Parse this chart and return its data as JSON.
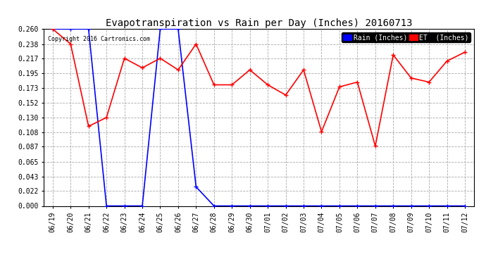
{
  "title": "Evapotranspiration vs Rain per Day (Inches) 20160713",
  "copyright": "Copyright 2016 Cartronics.com",
  "x_labels": [
    "06/19",
    "06/20",
    "06/21",
    "06/22",
    "06/23",
    "06/24",
    "06/25",
    "06/26",
    "06/27",
    "06/28",
    "06/29",
    "06/30",
    "07/01",
    "07/02",
    "07/03",
    "07/04",
    "07/05",
    "07/06",
    "07/07",
    "07/08",
    "07/09",
    "07/10",
    "07/11",
    "07/12"
  ],
  "rain_values": [
    0.26,
    0.26,
    0.26,
    0.0,
    0.0,
    0.0,
    0.26,
    0.26,
    0.028,
    0.0,
    0.0,
    0.0,
    0.0,
    0.0,
    0.0,
    0.0,
    0.0,
    0.0,
    0.0,
    0.0,
    0.0,
    0.0,
    0.0,
    0.0
  ],
  "et_values": [
    0.26,
    0.238,
    0.117,
    0.13,
    0.217,
    0.203,
    0.217,
    0.2,
    0.238,
    0.178,
    0.178,
    0.2,
    0.178,
    0.163,
    0.2,
    0.109,
    0.175,
    0.182,
    0.088,
    0.222,
    0.188,
    0.182,
    0.213,
    0.226
  ],
  "ylim": [
    0.0,
    0.26
  ],
  "yticks": [
    0.0,
    0.022,
    0.043,
    0.065,
    0.087,
    0.108,
    0.13,
    0.152,
    0.173,
    0.195,
    0.217,
    0.238,
    0.26
  ],
  "rain_color": "#0000FF",
  "et_color": "#FF0000",
  "bg_color": "#FFFFFF",
  "grid_color": "#AAAAAA",
  "title_fontsize": 10,
  "tick_fontsize": 7,
  "legend_rain_label": "Rain (Inches)",
  "legend_et_label": "ET  (Inches)"
}
